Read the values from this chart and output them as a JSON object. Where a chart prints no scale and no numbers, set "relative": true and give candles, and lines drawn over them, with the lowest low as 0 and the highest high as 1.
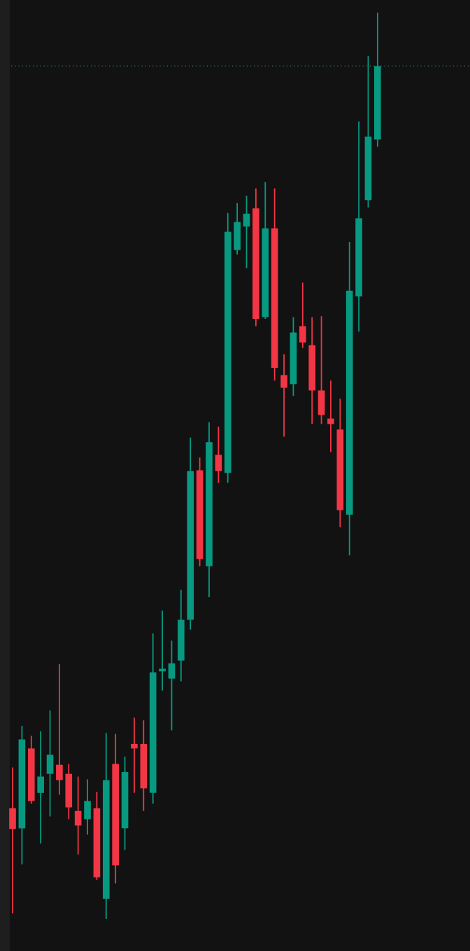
{
  "chart_data": {
    "type": "candlestick",
    "relative": true,
    "categories": [
      null,
      null,
      null,
      null,
      null,
      null,
      null,
      null,
      null,
      null,
      null,
      null,
      null,
      null,
      null,
      null,
      null,
      null,
      null,
      null,
      null,
      null,
      null,
      null,
      null,
      null,
      null,
      null,
      null,
      null,
      null,
      null,
      null,
      null,
      null,
      null,
      null,
      null,
      null,
      null
    ],
    "ohlc": [
      [
        0.122,
        0.167,
        0.006,
        0.099
      ],
      [
        0.1,
        0.213,
        0.06,
        0.198
      ],
      [
        0.188,
        0.202,
        0.127,
        0.13
      ],
      [
        0.139,
        0.207,
        0.083,
        0.157
      ],
      [
        0.16,
        0.23,
        0.113,
        0.181
      ],
      [
        0.17,
        0.281,
        0.137,
        0.153
      ],
      [
        0.16,
        0.171,
        0.11,
        0.123
      ],
      [
        0.119,
        0.157,
        0.071,
        0.103
      ],
      [
        0.11,
        0.154,
        0.093,
        0.13
      ],
      [
        0.122,
        0.14,
        0.043,
        0.046
      ],
      [
        0.022,
        0.205,
        0.0,
        0.153
      ],
      [
        0.171,
        0.204,
        0.039,
        0.059
      ],
      [
        0.1,
        0.179,
        0.076,
        0.162
      ],
      [
        0.193,
        0.222,
        0.139,
        0.188
      ],
      [
        0.193,
        0.219,
        0.119,
        0.144
      ],
      [
        0.139,
        0.315,
        0.127,
        0.272
      ],
      [
        0.273,
        0.34,
        0.252,
        0.276
      ],
      [
        0.265,
        0.307,
        0.208,
        0.282
      ],
      [
        0.285,
        0.363,
        0.262,
        0.33
      ],
      [
        0.33,
        0.531,
        0.319,
        0.494
      ],
      [
        0.495,
        0.509,
        0.389,
        0.397
      ],
      [
        0.389,
        0.548,
        0.355,
        0.526
      ],
      [
        0.512,
        0.543,
        0.481,
        0.494
      ],
      [
        0.492,
        0.779,
        0.481,
        0.758
      ],
      [
        0.738,
        0.79,
        0.733,
        0.769
      ],
      [
        0.764,
        0.798,
        0.718,
        0.778
      ],
      [
        0.784,
        0.806,
        0.654,
        0.662
      ],
      [
        0.664,
        0.813,
        0.662,
        0.762
      ],
      [
        0.762,
        0.806,
        0.594,
        0.608
      ],
      [
        0.6,
        0.623,
        0.532,
        0.586
      ],
      [
        0.59,
        0.664,
        0.577,
        0.647
      ],
      [
        0.654,
        0.702,
        0.63,
        0.636
      ],
      [
        0.633,
        0.664,
        0.546,
        0.583
      ],
      [
        0.583,
        0.665,
        0.546,
        0.556
      ],
      [
        0.552,
        0.594,
        0.515,
        0.546
      ],
      [
        0.54,
        0.574,
        0.432,
        0.451
      ],
      [
        0.446,
        0.747,
        0.401,
        0.693
      ],
      [
        0.687,
        0.88,
        0.648,
        0.773
      ],
      [
        0.793,
        0.952,
        0.785,
        0.863
      ],
      [
        0.86,
        1.0,
        0.852,
        0.941
      ]
    ],
    "colors": [
      "#f23645",
      "#089981",
      "#f23645",
      "#089981",
      "#089981",
      "#f23645",
      "#f23645",
      "#f23645",
      "#089981",
      "#f23645",
      "#089981",
      "#f23645",
      "#089981",
      "#f23645",
      "#f23645",
      "#089981",
      "#089981",
      "#089981",
      "#089981",
      "#089981",
      "#f23645",
      "#089981",
      "#f23645",
      "#089981",
      "#089981",
      "#089981",
      "#f23645",
      "#089981",
      "#f23645",
      "#f23645",
      "#089981",
      "#f23645",
      "#f23645",
      "#f23645",
      "#f23645",
      "#f23645",
      "#089981",
      "#089981",
      "#089981",
      "#089981"
    ],
    "ref_lines": [
      {
        "axis": "y",
        "value": 0.941,
        "color": "#3f8f80",
        "line_style": "dotted"
      }
    ]
  }
}
